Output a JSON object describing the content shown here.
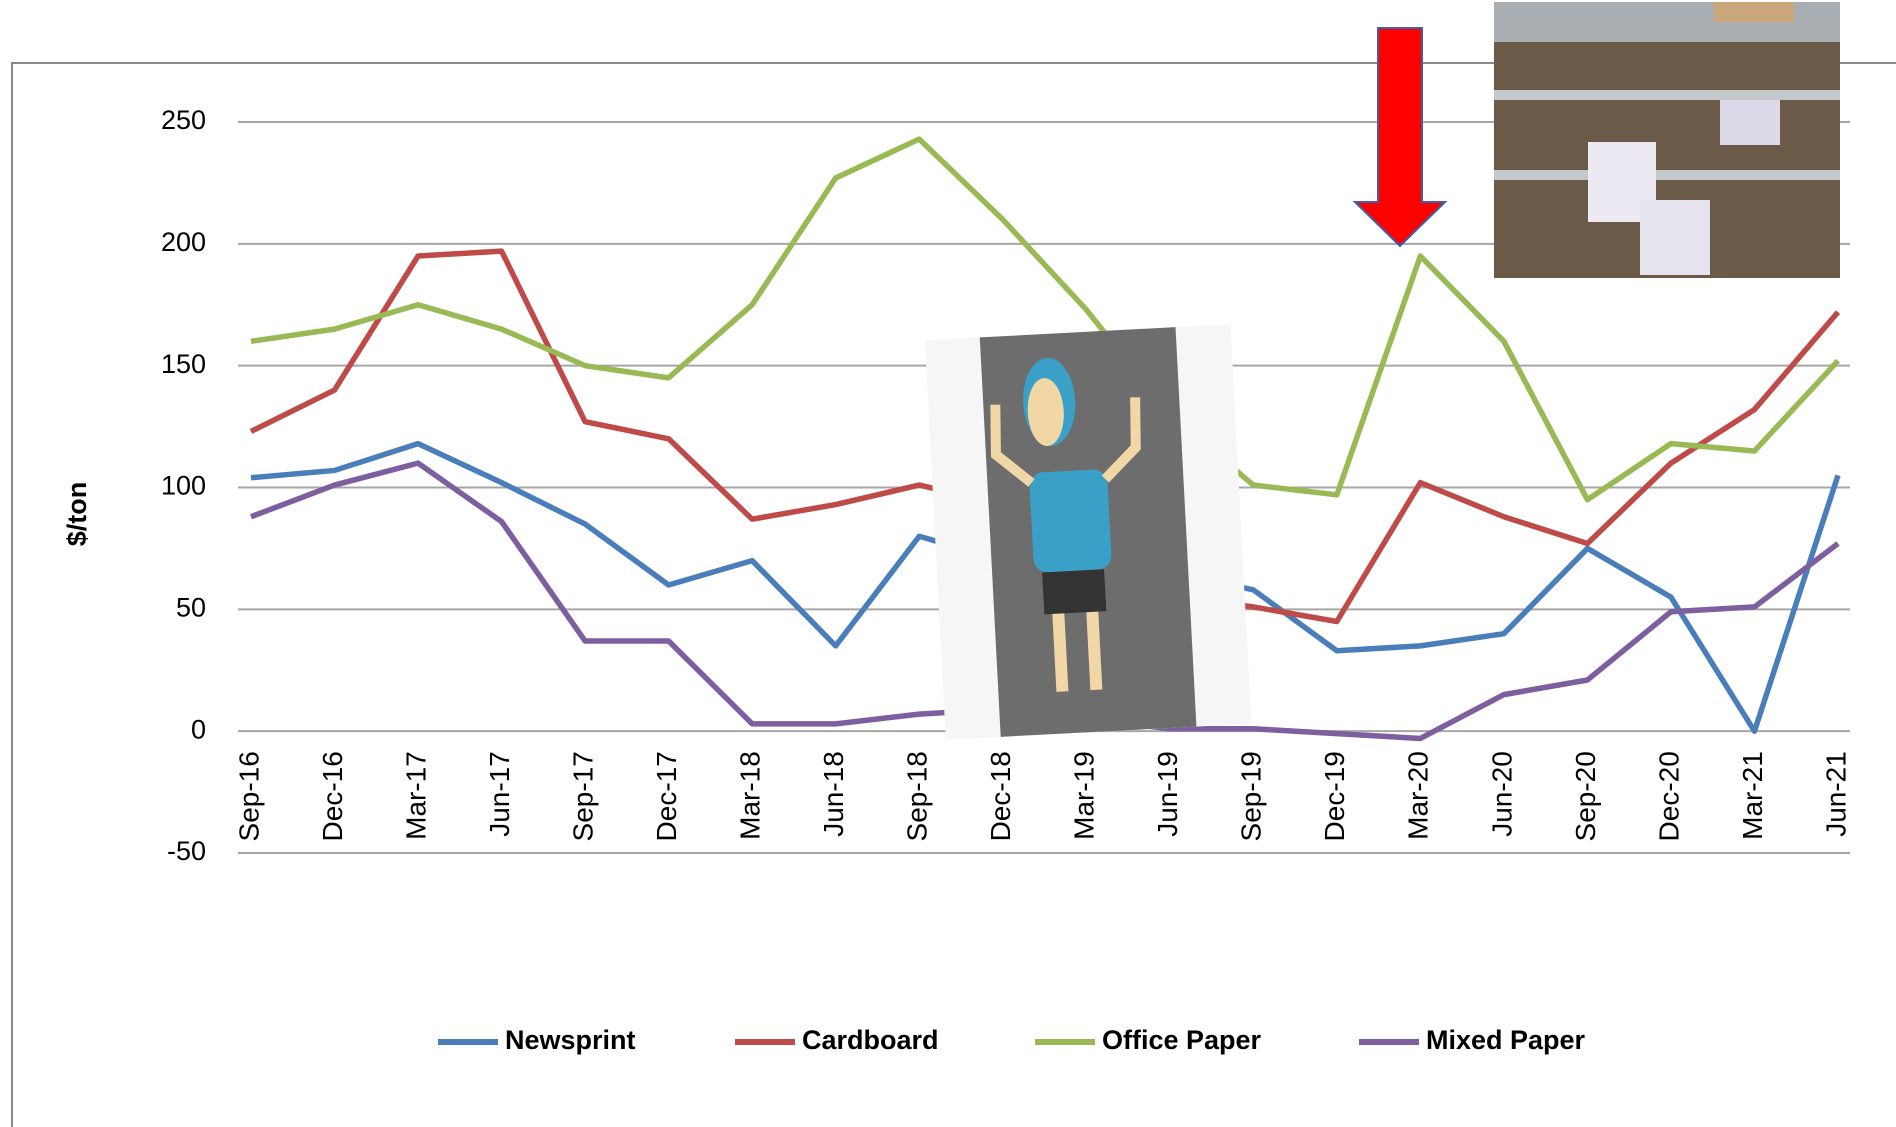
{
  "chart_data": {
    "type": "line",
    "y_label": "$/ton",
    "categories": [
      "Sep-16",
      "Dec-16",
      "Mar-17",
      "Jun-17",
      "Sep-17",
      "Dec-17",
      "Mar-18",
      "Jun-18",
      "Sep-18",
      "Dec-18",
      "Mar-19",
      "Jun-19",
      "Sep-19",
      "Dec-19",
      "Mar-20",
      "Jun-20",
      "Sep-20",
      "Dec-20",
      "Mar-21",
      "Jun-21"
    ],
    "series": [
      {
        "name": "Newsprint",
        "color": "#4a7ebb",
        "values": [
          104,
          107,
          118,
          102,
          85,
          60,
          70,
          35,
          80,
          70,
          65,
          65,
          58,
          33,
          35,
          40,
          75,
          55,
          0,
          105
        ]
      },
      {
        "name": "Cardboard",
        "color": "#be4b48",
        "values": [
          123,
          140,
          195,
          197,
          127,
          120,
          87,
          93,
          101,
          93,
          70,
          55,
          51,
          45,
          102,
          88,
          77,
          110,
          132,
          172
        ]
      },
      {
        "name": "Office Paper",
        "color": "#98b954",
        "values": [
          160,
          165,
          175,
          165,
          150,
          145,
          175,
          227,
          243,
          210,
          173,
          130,
          101,
          97,
          195,
          160,
          95,
          118,
          115,
          152
        ]
      },
      {
        "name": "Mixed Paper",
        "color": "#7d5fa0",
        "values": [
          88,
          101,
          110,
          86,
          37,
          37,
          3,
          3,
          7,
          9,
          5,
          1,
          1,
          -1,
          -3,
          15,
          21,
          49,
          51,
          77
        ]
      }
    ],
    "ylim": [
      -50,
      250
    ],
    "yticks": [
      -50,
      0,
      50,
      100,
      150,
      200,
      250
    ],
    "grid": true,
    "legend": "bottom"
  }
}
